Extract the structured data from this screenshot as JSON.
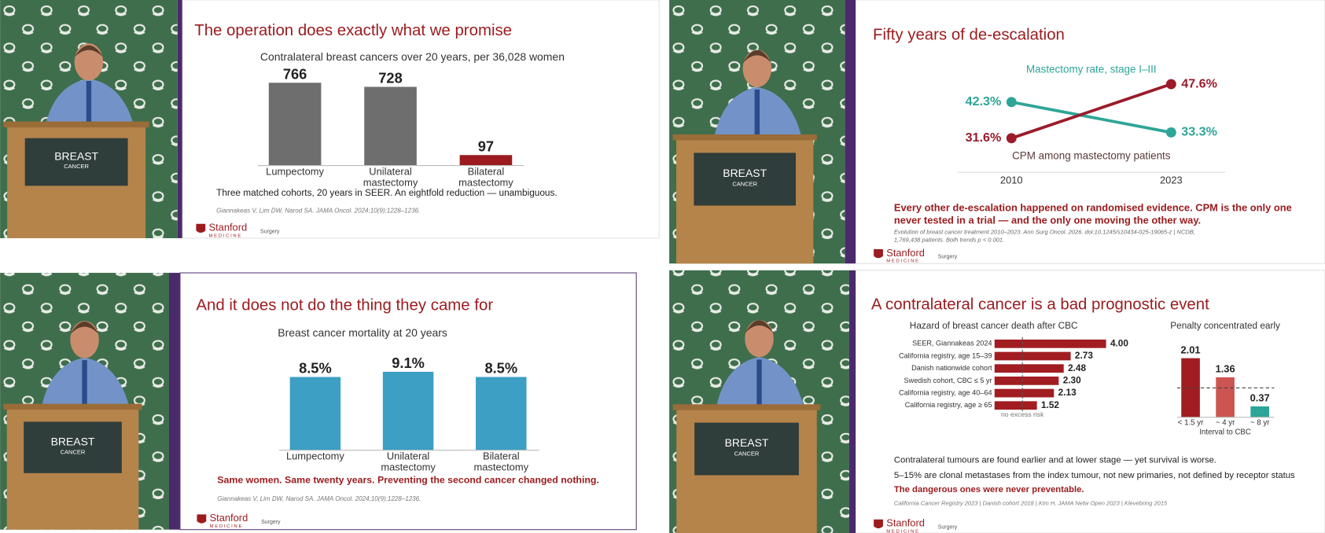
{
  "chart_data": [
    {
      "type": "bar",
      "title": "Contralateral breast cancers over 20 years, per 36,028 women",
      "categories": [
        "Lumpectomy",
        "Unilateral mastectomy",
        "Bilateral mastectomy"
      ],
      "values": [
        766,
        728,
        97
      ],
      "colors": [
        "#6e6e6e",
        "#6e6e6e",
        "#9b1b1e"
      ]
    },
    {
      "type": "line",
      "x": [
        2010,
        2023
      ],
      "series": [
        {
          "name": "Mastectomy rate, stage I–III",
          "color": "#2ea597",
          "values": [
            42.3,
            33.3
          ],
          "value_labels": [
            "42.3%",
            "33.3%"
          ]
        },
        {
          "name": "CPM among mastectomy patients",
          "color": "#9b1b2a",
          "values": [
            31.6,
            47.6
          ],
          "value_labels": [
            "31.6%",
            "47.6%"
          ]
        }
      ]
    },
    {
      "type": "bar",
      "title": "Breast cancer mortality at 20 years",
      "categories": [
        "Lumpectomy",
        "Unilateral mastectomy",
        "Bilateral mastectomy"
      ],
      "values": [
        8.5,
        9.1,
        8.5
      ],
      "value_labels": [
        "8.5%",
        "9.1%",
        "8.5%"
      ],
      "color": "#3c9fc3"
    },
    {
      "type": "barh",
      "title": "Hazard of breast cancer death after CBC",
      "categories": [
        "SEER, Giannakeas 2024",
        "California registry, age 15–39",
        "Danish nationwide cohort",
        "Swedish cohort, CBC ≤ 5 yr",
        "California registry, age 40–64",
        "California registry, age ≥ 65"
      ],
      "values": [
        4.0,
        2.73,
        2.48,
        2.3,
        2.13,
        1.52
      ],
      "value_labels": [
        "4.00",
        "2.73",
        "2.48",
        "2.30",
        "2.13",
        "1.52"
      ],
      "color": "#a11d21",
      "reference_line": {
        "value": 1,
        "label": "no excess risk"
      }
    },
    {
      "type": "bar",
      "title": "Penalty concentrated early",
      "categories": [
        "< 1.5 yr",
        "~ 4 yr",
        "~ 8 yr"
      ],
      "values": [
        2.01,
        1.36,
        0.37
      ],
      "colors": [
        "#a11d21",
        "#cc5552",
        "#2aa597"
      ],
      "x_label": "Interval to CBC",
      "reference_line": {
        "value": 1
      }
    }
  ],
  "slides": [
    {
      "title": "The operation does exactly what we promise",
      "note": "Three matched cohorts, 20 years in SEER. An eightfold reduction — unambiguous.",
      "citation": "Giannakeas V, Lim DW, Narod SA. JAMA Oncol. 2024;10(9):1228–1236."
    },
    {
      "title": "Fifty years of de-escalation",
      "note": "Every other de-escalation happened on randomised evidence. CPM is the only one never tested in a trial — and the only one moving the other way.",
      "citation": "Evolution of breast cancer treatment 2010–2023. Ann Surg Oncol. 2026. doi:10.1245/s10434-025-19065-z | NCDB, 1,769,438 patients. Both trends p < 0.001."
    },
    {
      "title": "And it does not do the thing they came for",
      "note": "Same women. Same twenty years. Preventing the second cancer changed nothing.",
      "citation": "Giannakeas V, Lim DW, Narod SA. JAMA Oncol. 2024;10(9):1228–1236."
    },
    {
      "title": "A contralateral cancer is a bad prognostic event",
      "notes": [
        "Contralateral tumours are found earlier and at lower stage — yet survival is worse.",
        "5–15% are clonal metastases from the index tumour, not new primaries, not defined by receptor status"
      ],
      "note": "The dangerous ones were never preventable.",
      "citation": "California Cancer Registry 2023 | Danish cohort 2018 | Kim H, JAMA Netw Open 2023 | Klevebring 2015"
    }
  ],
  "logo": {
    "name": "Stanford",
    "sub": "MEDICINE",
    "dept": "Surgery"
  },
  "podium": {
    "title": "BREAST",
    "subtitle": "CANCER"
  }
}
